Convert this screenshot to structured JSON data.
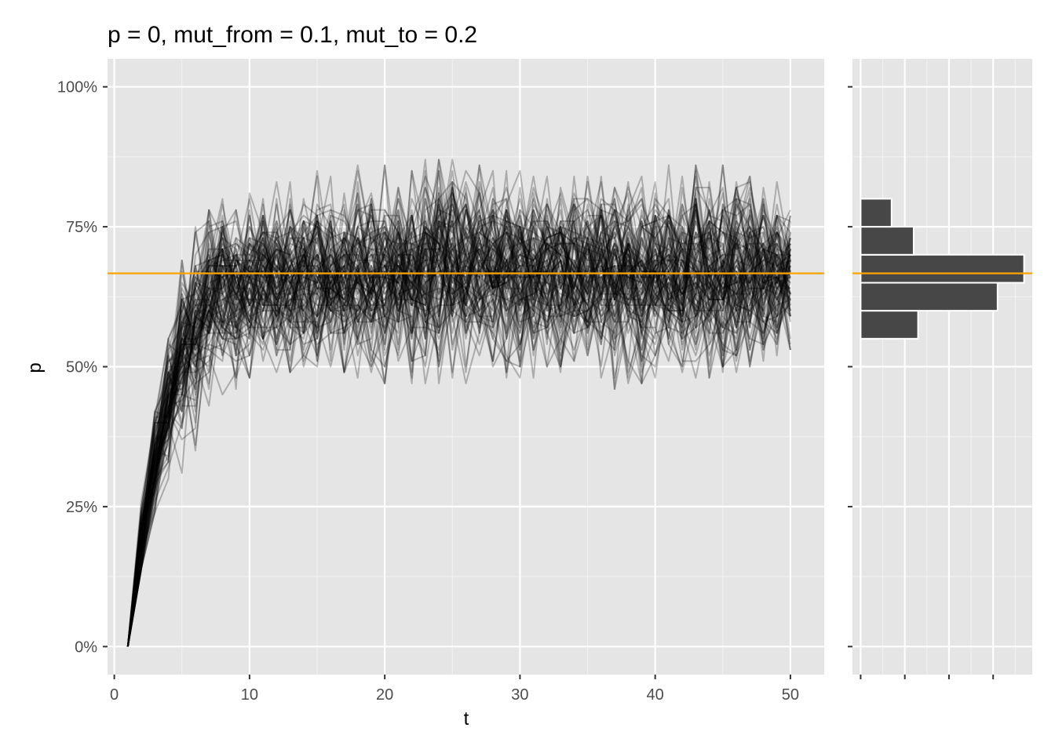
{
  "chart_data": [
    {
      "type": "line",
      "title": "p = 0, mut_from = 0.1, mut_to = 0.2",
      "xlabel": "t",
      "ylabel": "p",
      "xlim": [
        -0.5,
        52.5
      ],
      "ylim": [
        -0.05,
        1.05
      ],
      "x_ticks": [
        0,
        10,
        20,
        30,
        40,
        50
      ],
      "x_tick_labels": [
        "0",
        "10",
        "20",
        "30",
        "40",
        "50"
      ],
      "y_ticks": [
        0,
        0.25,
        0.5,
        0.75,
        1.0
      ],
      "y_tick_labels": [
        "0%",
        "25%",
        "50%",
        "75%",
        "100%"
      ],
      "grid": true,
      "legend": "none",
      "n_series": 100,
      "series_color": "#000000",
      "series_opacity": 0.25,
      "series_summary": {
        "t": [
          1,
          2,
          3,
          4,
          5,
          6,
          7,
          8,
          10,
          15,
          20,
          25,
          30,
          35,
          40,
          45,
          50
        ],
        "mean": [
          0.0,
          0.19,
          0.33,
          0.44,
          0.52,
          0.58,
          0.62,
          0.64,
          0.65,
          0.66,
          0.66,
          0.665,
          0.665,
          0.665,
          0.665,
          0.665,
          0.665
        ],
        "min": [
          0.0,
          0.14,
          0.22,
          0.25,
          0.31,
          0.35,
          0.41,
          0.44,
          0.48,
          0.5,
          0.47,
          0.47,
          0.48,
          0.46,
          0.47,
          0.48,
          0.53
        ],
        "max": [
          0.0,
          0.28,
          0.42,
          0.55,
          0.69,
          0.75,
          0.78,
          0.8,
          0.81,
          0.85,
          0.86,
          0.87,
          0.85,
          0.84,
          0.86,
          0.86,
          0.82
        ]
      },
      "reference_line": {
        "y": 0.6667,
        "color": "#FFA500"
      }
    },
    {
      "type": "bar",
      "orientation": "horizontal",
      "ylim": [
        -0.05,
        1.05
      ],
      "bins": [
        {
          "from": 0.55,
          "to": 0.6,
          "count": 13
        },
        {
          "from": 0.6,
          "to": 0.65,
          "count": 31
        },
        {
          "from": 0.65,
          "to": 0.7,
          "count": 37
        },
        {
          "from": 0.7,
          "to": 0.75,
          "count": 12
        },
        {
          "from": 0.75,
          "to": 0.8,
          "count": 7
        }
      ],
      "bar_color": "#474747",
      "reference_line": {
        "y": 0.6667,
        "color": "#FFA500"
      }
    }
  ]
}
